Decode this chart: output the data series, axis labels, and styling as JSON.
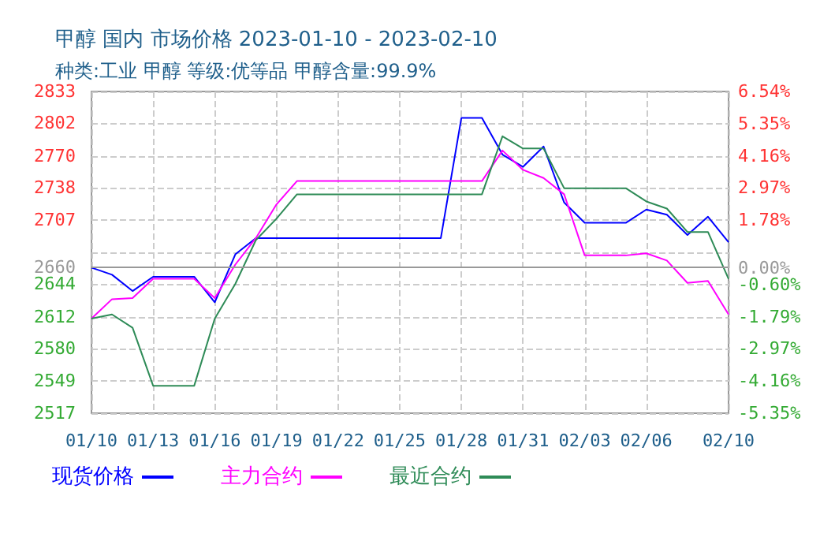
{
  "chart_data": {
    "type": "line",
    "title": "甲醇 国内 市场价格 2023-01-10 - 2023-02-10",
    "subtitle": "种类:工业 甲醇 等级:优等品 甲醇含量:99.9%",
    "x": [
      "2023-01-10",
      "2023-01-11",
      "2023-01-12",
      "2023-01-13",
      "2023-01-14",
      "2023-01-15",
      "2023-01-16",
      "2023-01-17",
      "2023-01-18",
      "2023-01-19",
      "2023-01-20",
      "2023-01-21",
      "2023-01-22",
      "2023-01-23",
      "2023-01-24",
      "2023-01-25",
      "2023-01-26",
      "2023-01-27",
      "2023-01-28",
      "2023-01-29",
      "2023-01-30",
      "2023-01-31",
      "2023-02-01",
      "2023-02-02",
      "2023-02-03",
      "2023-02-04",
      "2023-02-05",
      "2023-02-06",
      "2023-02-07",
      "2023-02-08",
      "2023-02-09",
      "2023-02-10"
    ],
    "series": [
      {
        "name": "现货价格",
        "color": "#0000ff",
        "values": [
          2660,
          2653,
          2637,
          2651,
          2651,
          2651,
          2626,
          2673,
          2689,
          2689,
          2689,
          2689,
          2689,
          2689,
          2689,
          2689,
          2689,
          2689,
          2807,
          2807,
          2771,
          2759,
          2779,
          2724,
          2704,
          2704,
          2704,
          2717,
          2712,
          2692,
          2710,
          2685
        ]
      },
      {
        "name": "主力合约",
        "color": "#ff00ff",
        "values": [
          2610,
          2629,
          2630,
          2649,
          2649,
          2649,
          2630,
          2663,
          2689,
          2722,
          2745,
          2745,
          2745,
          2745,
          2745,
          2745,
          2745,
          2745,
          2745,
          2745,
          2775,
          2756,
          2748,
          2732,
          2672,
          2672,
          2672,
          2674,
          2667,
          2645,
          2647,
          2614
        ]
      },
      {
        "name": "最近合约",
        "color": "#2e8b57",
        "values": [
          2610,
          2614,
          2601,
          2544,
          2544,
          2544,
          2610,
          2644,
          2687,
          2708,
          2732,
          2732,
          2732,
          2732,
          2732,
          2732,
          2732,
          2732,
          2732,
          2732,
          2789,
          2777,
          2777,
          2738,
          2738,
          2738,
          2738,
          2725,
          2718,
          2695,
          2695,
          2649
        ]
      }
    ],
    "xlim": [
      "2023-01-10",
      "2023-02-10"
    ],
    "xticks": [
      {
        "value": "2023-01-10",
        "label": "01/10"
      },
      {
        "value": "2023-01-13",
        "label": "01/13"
      },
      {
        "value": "2023-01-16",
        "label": "01/16"
      },
      {
        "value": "2023-01-19",
        "label": "01/19"
      },
      {
        "value": "2023-01-22",
        "label": "01/22"
      },
      {
        "value": "2023-01-25",
        "label": "01/25"
      },
      {
        "value": "2023-01-28",
        "label": "01/28"
      },
      {
        "value": "2023-01-31",
        "label": "01/31"
      },
      {
        "value": "2023-02-03",
        "label": "02/03"
      },
      {
        "value": "2023-02-06",
        "label": "02/06"
      },
      {
        "value": "2023-02-10",
        "label": "02/10"
      }
    ],
    "ylim": [
      2517,
      2833
    ],
    "yticks": [
      2517,
      {
        "value": 2548.6,
        "label": "2549"
      },
      {
        "value": 2580.2,
        "label": "2580"
      },
      {
        "value": 2611.8,
        "label": "2612"
      },
      2644,
      2660,
      {
        "value": 2675,
        "label": null
      },
      {
        "value": 2706.6,
        "label": "2707"
      },
      {
        "value": 2738.2,
        "label": "2738"
      },
      {
        "value": 2769.8,
        "label": "2770"
      },
      2802,
      2833
    ],
    "y2lim": [
      -5.35,
      6.54
    ],
    "y2ticks": [
      {
        "value": -5.35,
        "label": "-5.35%"
      },
      {
        "value": -4.161,
        "label": "-4.16%"
      },
      {
        "value": -2.972,
        "label": "-2.97%"
      },
      {
        "value": -1.79,
        "label": "-1.79%"
      },
      {
        "value": -0.6,
        "label": "-0.60%"
      },
      {
        "value": 0,
        "label": "0.00%"
      },
      {
        "value": 1.784,
        "label": "1.78%"
      },
      {
        "value": 2.973,
        "label": "2.97%"
      },
      {
        "value": 4.162,
        "label": "4.16%"
      },
      {
        "value": 5.351,
        "label": "5.35%"
      },
      {
        "value": 6.54,
        "label": "6.54%"
      }
    ],
    "ref_lines": [
      {
        "axis": "y",
        "value": 2660,
        "color": "#999999"
      }
    ],
    "grid": true,
    "legend": "bottom",
    "marker": "none",
    "line_style": "solid"
  }
}
